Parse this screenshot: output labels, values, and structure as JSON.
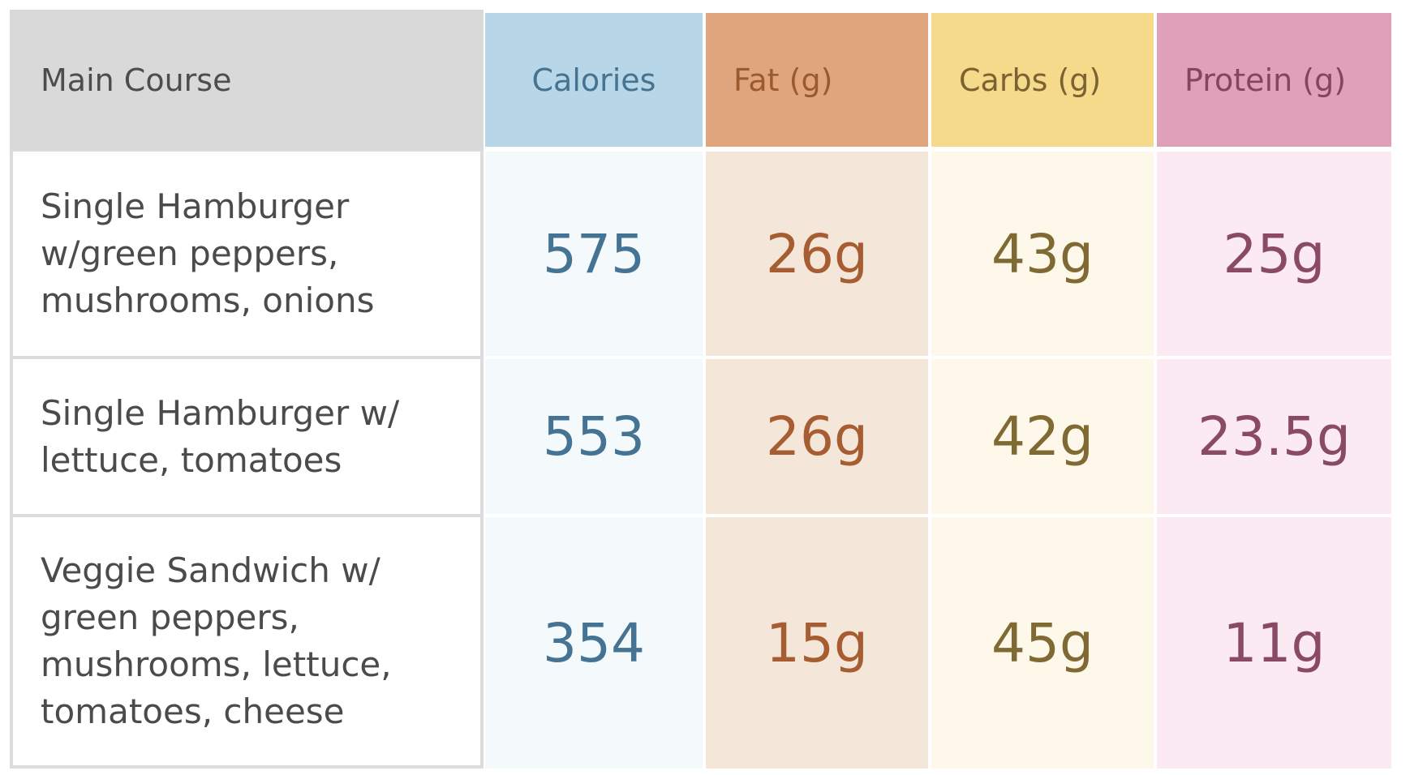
{
  "headers": {
    "main_course": "Main Course",
    "calories": "Calories",
    "fat": "Fat (g)",
    "carbs": "Carbs (g)",
    "protein": "Protein (g)"
  },
  "rows": [
    {
      "name_lines": [
        "Single Hamburger",
        "w/green peppers,",
        "mushrooms, onions"
      ],
      "calories": "575",
      "fat": "26g",
      "carbs": "43g",
      "protein": "25g"
    },
    {
      "name_lines": [
        "Single Hamburger w/",
        "lettuce, tomatoes"
      ],
      "calories": "553",
      "fat": "26g",
      "carbs": "42g",
      "protein": "23.5g"
    },
    {
      "name_lines": [
        "Veggie Sandwich w/",
        "green peppers,",
        "mushrooms, lettuce,",
        "tomatoes, cheese"
      ],
      "calories": "354",
      "fat": "15g",
      "carbs": "45g",
      "protein": "11g"
    }
  ],
  "colors": {
    "header_main": "#d9d9d9",
    "calories": "#b7d7e8",
    "fat": "#e1a57e",
    "carbs": "#f5da8b",
    "protein": "#dfa0b8"
  }
}
